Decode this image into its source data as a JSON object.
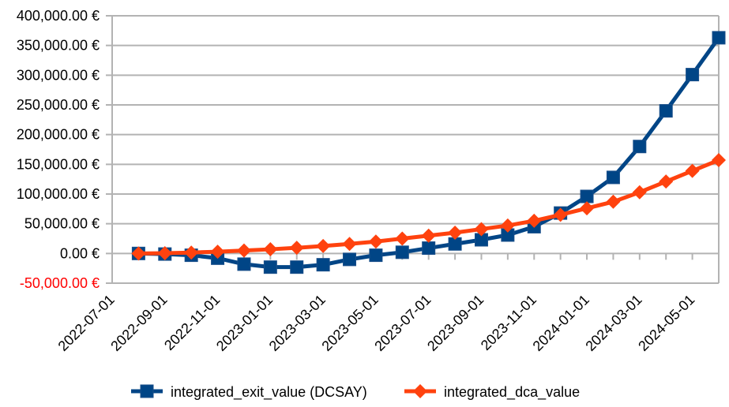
{
  "chart_data": {
    "type": "line",
    "title": "",
    "xlabel": "",
    "ylabel": "",
    "ylim": [
      -50000,
      400000
    ],
    "y_ticks": [
      -50000,
      0,
      50000,
      100000,
      150000,
      200000,
      250000,
      300000,
      350000,
      400000
    ],
    "y_tick_labels": [
      "-50,000.00 €",
      "0.00 €",
      "50,000.00 €",
      "100,000.00 €",
      "150,000.00 €",
      "200,000.00 €",
      "250,000.00 €",
      "300,000.00 €",
      "350,000.00 €",
      "400,000.00 €"
    ],
    "negative_label_color": "#ff0000",
    "x_range": [
      "2022-07-01",
      "2024-06-01"
    ],
    "x_tick_labels": [
      "2022-07-01",
      "2022-09-01",
      "2022-11-01",
      "2023-01-01",
      "2023-03-01",
      "2023-05-01",
      "2023-07-01",
      "2023-09-01",
      "2023-11-01",
      "2024-01-01",
      "2024-03-01",
      "2024-05-01"
    ],
    "grid": true,
    "legend_position": "bottom",
    "x": [
      "2022-08-01",
      "2022-09-01",
      "2022-10-01",
      "2022-11-01",
      "2022-12-01",
      "2023-01-01",
      "2023-02-01",
      "2023-03-01",
      "2023-04-01",
      "2023-05-01",
      "2023-06-01",
      "2023-07-01",
      "2023-08-01",
      "2023-09-01",
      "2023-10-01",
      "2023-11-01",
      "2023-12-01",
      "2024-01-01",
      "2024-02-01",
      "2024-03-01",
      "2024-04-01",
      "2024-05-01",
      "2024-06-01"
    ],
    "series": [
      {
        "name": "integrated_exit_value (DCSAY)",
        "color": "#004586",
        "marker": "square",
        "values": [
          0,
          -1000,
          -3000,
          -8000,
          -18000,
          -23000,
          -23000,
          -19000,
          -10000,
          -3000,
          2000,
          9000,
          16000,
          23000,
          31000,
          45000,
          68000,
          96000,
          128000,
          180000,
          240000,
          301000,
          363000
        ]
      },
      {
        "name": "integrated_dca_value",
        "color": "#ff420e",
        "marker": "diamond",
        "values": [
          0,
          500,
          1500,
          3000,
          5000,
          7000,
          9500,
          12500,
          16000,
          20000,
          25000,
          30000,
          35000,
          41000,
          47000,
          55000,
          65000,
          76000,
          87000,
          103000,
          121000,
          139000,
          157000
        ]
      }
    ]
  }
}
